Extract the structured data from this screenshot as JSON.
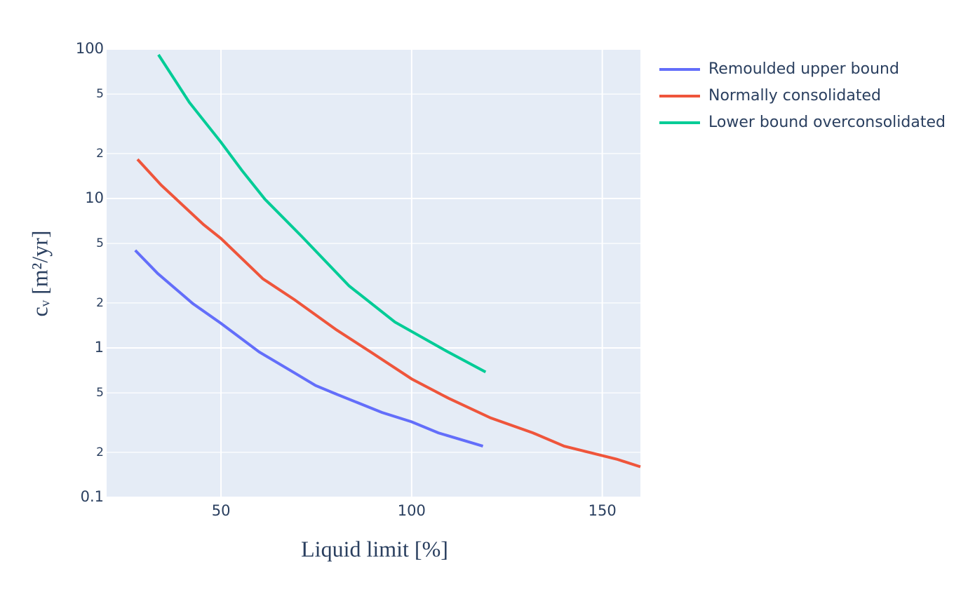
{
  "chart_data": {
    "type": "line",
    "x_label": "Liquid limit [%]",
    "y_label": "cᵥ [m²/yr]",
    "xlim": [
      20,
      160
    ],
    "xticks": [
      50,
      100,
      150
    ],
    "ylim": [
      0.1,
      100
    ],
    "y_log": true,
    "yticks": [
      0.1,
      {
        "value": 0.2,
        "label": "2"
      },
      {
        "value": 0.5,
        "label": "5"
      },
      1,
      2,
      5,
      10,
      {
        "value": 20,
        "label": "2"
      },
      {
        "value": 50,
        "label": "5"
      },
      100
    ],
    "grid": true,
    "legend_position": "right",
    "series": [
      {
        "name": "Remoulded upper bound",
        "color": "#636efa",
        "x": [
          27.5,
          33.4,
          42.6,
          50,
          60,
          69.3,
          74.8,
          80.3,
          92.2,
          100,
          107,
          118.7
        ],
        "values": [
          4.5,
          3.15,
          1.98,
          1.46,
          0.94,
          0.68,
          0.56,
          0.49,
          0.37,
          0.32,
          0.27,
          0.22
        ]
      },
      {
        "name": "Normally consolidated",
        "color": "#EF553B",
        "x": [
          28.1,
          34.3,
          45.4,
          50,
          61,
          69.3,
          80.3,
          89.5,
          100,
          109.7,
          120.7,
          131.8,
          140,
          153.8,
          160
        ],
        "values": [
          18.3,
          12.3,
          6.7,
          5.4,
          2.9,
          2.1,
          1.32,
          0.93,
          0.62,
          0.46,
          0.34,
          0.27,
          0.22,
          0.18,
          0.16
        ]
      },
      {
        "name": "Lower bound overconsolidated",
        "color": "#00cc96",
        "x": [
          33.6,
          41.7,
          50,
          55.5,
          61.5,
          71.1,
          83.6,
          95.6,
          109.2,
          119.4
        ],
        "values": [
          91.7,
          44,
          23.8,
          15.4,
          9.9,
          5.6,
          2.6,
          1.49,
          0.95,
          0.69
        ]
      }
    ]
  }
}
